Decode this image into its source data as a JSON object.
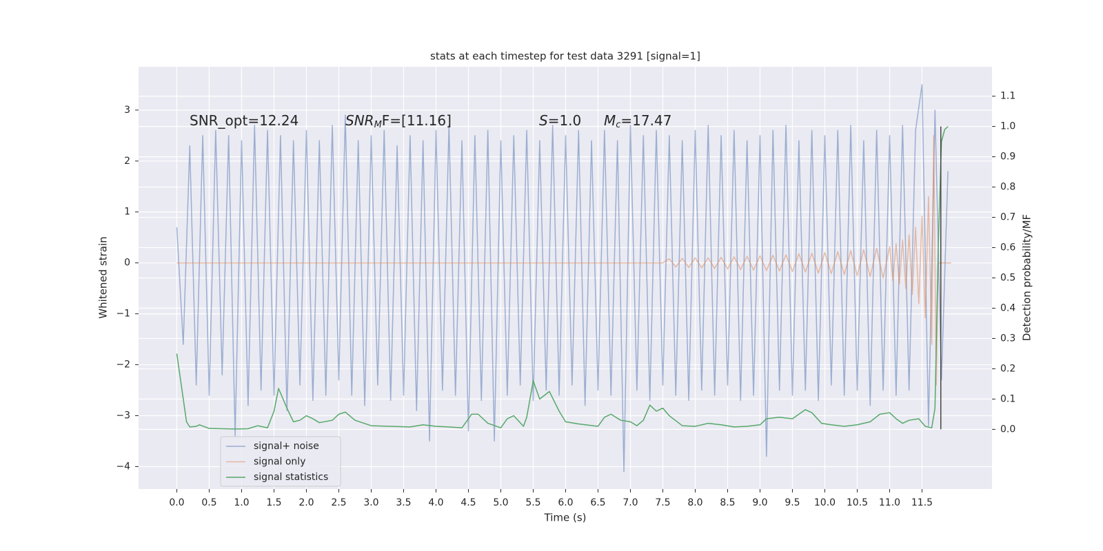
{
  "chart_data": {
    "type": "line",
    "title": "stats at each timestep for test data 3291 [signal=1]",
    "xlabel": "Time (s)",
    "ylabel": "Whitened strain",
    "y2label": "Detection probability/MF",
    "annotations": [
      {
        "text": "SNR_opt=12.24"
      },
      {
        "main": "SNR",
        "sub": "M",
        "tail": "F=[11.16]"
      },
      {
        "main": "S",
        "tail": "=1.0"
      },
      {
        "main": "M",
        "sub": "c",
        "tail": "=17.47"
      }
    ],
    "xlim": [
      -0.59,
      12.58
    ],
    "ylim": [
      -4.44,
      3.85
    ],
    "y2lim": [
      -0.197,
      1.197
    ],
    "xticks": [
      {
        "value": 0,
        "label": "0.0"
      },
      0.5,
      {
        "value": 1,
        "label": "1.0"
      },
      1.5,
      {
        "value": 2,
        "label": "2.0"
      },
      2.5,
      {
        "value": 3,
        "label": "3.0"
      },
      3.5,
      {
        "value": 4,
        "label": "4.0"
      },
      4.5,
      {
        "value": 5,
        "label": "5.0"
      },
      5.5,
      {
        "value": 6,
        "label": "6.0"
      },
      6.5,
      {
        "value": 7,
        "label": "7.0"
      },
      7.5,
      {
        "value": 8,
        "label": "8.0"
      },
      8.5,
      {
        "value": 9,
        "label": "9.0"
      },
      9.5,
      {
        "value": 10,
        "label": "10.0"
      },
      10.5,
      {
        "value": 11,
        "label": "11.0"
      },
      11.5
    ],
    "yticks": [
      {
        "value": -4,
        "label": "−4"
      },
      {
        "value": -3,
        "label": "−3"
      },
      {
        "value": -2,
        "label": "−2"
      },
      {
        "value": -1,
        "label": "−1"
      },
      0,
      1,
      2,
      3
    ],
    "y2ticks": [
      {
        "value": 0,
        "label": "0.0"
      },
      0.1,
      0.2,
      0.3,
      0.4,
      0.5,
      0.6,
      0.7,
      0.8,
      0.9,
      {
        "value": 1,
        "label": "1.0"
      },
      1.1
    ],
    "grid": true,
    "legend": "lower left",
    "series": [
      {
        "name": "signal+ noise",
        "color": "#4c72b0",
        "opacity": 0.5,
        "x": [
          0.0,
          0.1,
          0.2,
          0.3,
          0.4,
          0.5,
          0.6,
          0.7,
          0.8,
          0.9,
          1.0,
          1.1,
          1.2,
          1.3,
          1.4,
          1.5,
          1.6,
          1.7,
          1.8,
          1.9,
          2.0,
          2.1,
          2.2,
          2.3,
          2.4,
          2.5,
          2.6,
          2.7,
          2.8,
          2.9,
          3.0,
          3.1,
          3.2,
          3.3,
          3.4,
          3.5,
          3.6,
          3.7,
          3.8,
          3.9,
          4.0,
          4.1,
          4.2,
          4.3,
          4.4,
          4.5,
          4.6,
          4.7,
          4.8,
          4.9,
          5.0,
          5.1,
          5.2,
          5.3,
          5.4,
          5.5,
          5.6,
          5.7,
          5.8,
          5.9,
          6.0,
          6.1,
          6.2,
          6.3,
          6.4,
          6.5,
          6.6,
          6.7,
          6.8,
          6.9,
          7.0,
          7.1,
          7.2,
          7.3,
          7.4,
          7.5,
          7.6,
          7.7,
          7.8,
          7.9,
          8.0,
          8.1,
          8.2,
          8.3,
          8.4,
          8.5,
          8.6,
          8.7,
          8.8,
          8.9,
          9.0,
          9.1,
          9.2,
          9.3,
          9.4,
          9.5,
          9.6,
          9.7,
          9.8,
          9.9,
          10.0,
          10.1,
          10.2,
          10.3,
          10.4,
          10.5,
          10.6,
          10.7,
          10.8,
          10.9,
          11.0,
          11.1,
          11.2,
          11.3,
          11.4,
          11.5,
          11.6,
          11.7,
          11.8,
          11.9
        ],
        "values": [
          0.7,
          -1.6,
          2.3,
          -2.4,
          2.5,
          -2.6,
          2.6,
          -2.2,
          2.5,
          -3.4,
          2.4,
          -2.8,
          2.7,
          -2.5,
          2.6,
          -2.6,
          2.5,
          -2.9,
          2.4,
          -2.4,
          2.6,
          -2.7,
          2.4,
          -2.6,
          2.7,
          -2.3,
          2.9,
          -2.6,
          2.4,
          -2.8,
          2.5,
          -2.4,
          2.6,
          -2.7,
          2.3,
          -2.6,
          2.5,
          -2.9,
          2.4,
          -3.5,
          2.6,
          -2.5,
          2.7,
          -2.6,
          2.4,
          -3.3,
          2.5,
          -2.7,
          2.6,
          -3.5,
          2.4,
          -2.6,
          2.5,
          -2.4,
          2.6,
          -2.7,
          2.4,
          -2.5,
          2.7,
          -2.6,
          2.5,
          -2.4,
          2.6,
          -2.8,
          2.4,
          -2.5,
          2.6,
          -2.6,
          2.4,
          -4.1,
          2.7,
          -2.5,
          2.5,
          -2.7,
          2.6,
          -2.4,
          2.5,
          -2.6,
          2.4,
          -2.7,
          2.6,
          -2.5,
          2.7,
          -2.6,
          2.5,
          -2.4,
          2.6,
          -2.7,
          2.4,
          -2.6,
          2.5,
          -3.8,
          2.6,
          -2.5,
          2.7,
          -2.6,
          2.4,
          -2.5,
          2.6,
          -2.7,
          2.5,
          -2.4,
          2.6,
          -2.6,
          2.7,
          -2.5,
          2.4,
          -2.8,
          2.6,
          -2.5,
          2.5,
          -2.6,
          2.7,
          -2.5,
          2.6,
          3.5,
          -3.2,
          3.0,
          -2.3,
          1.8
        ]
      },
      {
        "name": "signal only",
        "color": "#dd8452",
        "opacity": 0.5,
        "x": [
          0.0,
          7.5,
          7.6,
          7.7,
          7.8,
          7.9,
          8.0,
          8.1,
          8.2,
          8.3,
          8.4,
          8.5,
          8.6,
          8.7,
          8.8,
          8.9,
          9.0,
          9.1,
          9.2,
          9.3,
          9.4,
          9.5,
          9.6,
          9.7,
          9.8,
          9.9,
          10.0,
          10.1,
          10.2,
          10.3,
          10.4,
          10.5,
          10.6,
          10.7,
          10.8,
          10.9,
          11.0,
          11.05,
          11.1,
          11.15,
          11.2,
          11.25,
          11.3,
          11.35,
          11.4,
          11.45,
          11.5,
          11.55,
          11.6,
          11.65,
          11.68,
          11.72,
          11.75,
          11.95
        ],
        "values": [
          0,
          0,
          0.08,
          -0.08,
          0.09,
          -0.09,
          0.1,
          -0.1,
          0.1,
          -0.11,
          0.11,
          -0.12,
          0.12,
          -0.13,
          0.13,
          -0.14,
          0.14,
          -0.15,
          0.15,
          -0.16,
          0.16,
          -0.17,
          0.18,
          -0.18,
          0.19,
          -0.2,
          0.2,
          -0.21,
          0.22,
          -0.23,
          0.24,
          -0.25,
          0.26,
          -0.27,
          0.29,
          -0.3,
          0.32,
          -0.35,
          0.38,
          -0.41,
          0.45,
          -0.5,
          0.55,
          -0.62,
          0.7,
          -0.8,
          0.92,
          -1.08,
          1.3,
          -1.6,
          2.5,
          -2.4,
          0,
          0
        ]
      },
      {
        "name": "signal statistics",
        "color": "#55a868",
        "opacity": 1,
        "axis": "y2",
        "x": [
          0.0,
          0.1,
          0.15,
          0.2,
          0.3,
          0.35,
          0.5,
          0.7,
          0.9,
          1.1,
          1.25,
          1.4,
          1.5,
          1.57,
          1.7,
          1.8,
          1.9,
          2.0,
          2.1,
          2.2,
          2.4,
          2.5,
          2.6,
          2.75,
          3.0,
          3.3,
          3.6,
          3.8,
          4.0,
          4.2,
          4.4,
          4.55,
          4.65,
          4.8,
          5.0,
          5.1,
          5.2,
          5.35,
          5.4,
          5.5,
          5.6,
          5.75,
          5.9,
          6.0,
          6.2,
          6.5,
          6.6,
          6.7,
          6.85,
          7.0,
          7.1,
          7.2,
          7.3,
          7.4,
          7.5,
          7.6,
          7.8,
          8.0,
          8.2,
          8.4,
          8.6,
          8.8,
          9.0,
          9.1,
          9.3,
          9.5,
          9.7,
          9.8,
          9.95,
          10.1,
          10.3,
          10.5,
          10.7,
          10.85,
          11.0,
          11.1,
          11.2,
          11.3,
          11.45,
          11.55,
          11.65,
          11.7,
          11.75,
          11.8,
          11.85,
          11.9
        ],
        "values": [
          0.25,
          0.1,
          0.025,
          0.008,
          0.01,
          0.015,
          0.003,
          0.002,
          0.001,
          0.002,
          0.012,
          0.005,
          0.06,
          0.135,
          0.07,
          0.025,
          0.03,
          0.045,
          0.035,
          0.022,
          0.03,
          0.05,
          0.057,
          0.03,
          0.012,
          0.01,
          0.008,
          0.015,
          0.01,
          0.008,
          0.005,
          0.05,
          0.05,
          0.02,
          0.005,
          0.035,
          0.045,
          0.01,
          0.04,
          0.16,
          0.1,
          0.125,
          0.06,
          0.025,
          0.018,
          0.01,
          0.04,
          0.05,
          0.03,
          0.025,
          0.012,
          0.03,
          0.08,
          0.06,
          0.07,
          0.045,
          0.012,
          0.01,
          0.02,
          0.015,
          0.008,
          0.01,
          0.015,
          0.035,
          0.04,
          0.035,
          0.065,
          0.055,
          0.02,
          0.015,
          0.01,
          0.015,
          0.025,
          0.05,
          0.055,
          0.035,
          0.02,
          0.03,
          0.035,
          0.01,
          0.005,
          0.07,
          0.6,
          0.95,
          0.99,
          1.0
        ]
      }
    ],
    "marker_line": {
      "x": 11.79,
      "y2": [
        0,
        1
      ],
      "color": "#444444"
    }
  }
}
